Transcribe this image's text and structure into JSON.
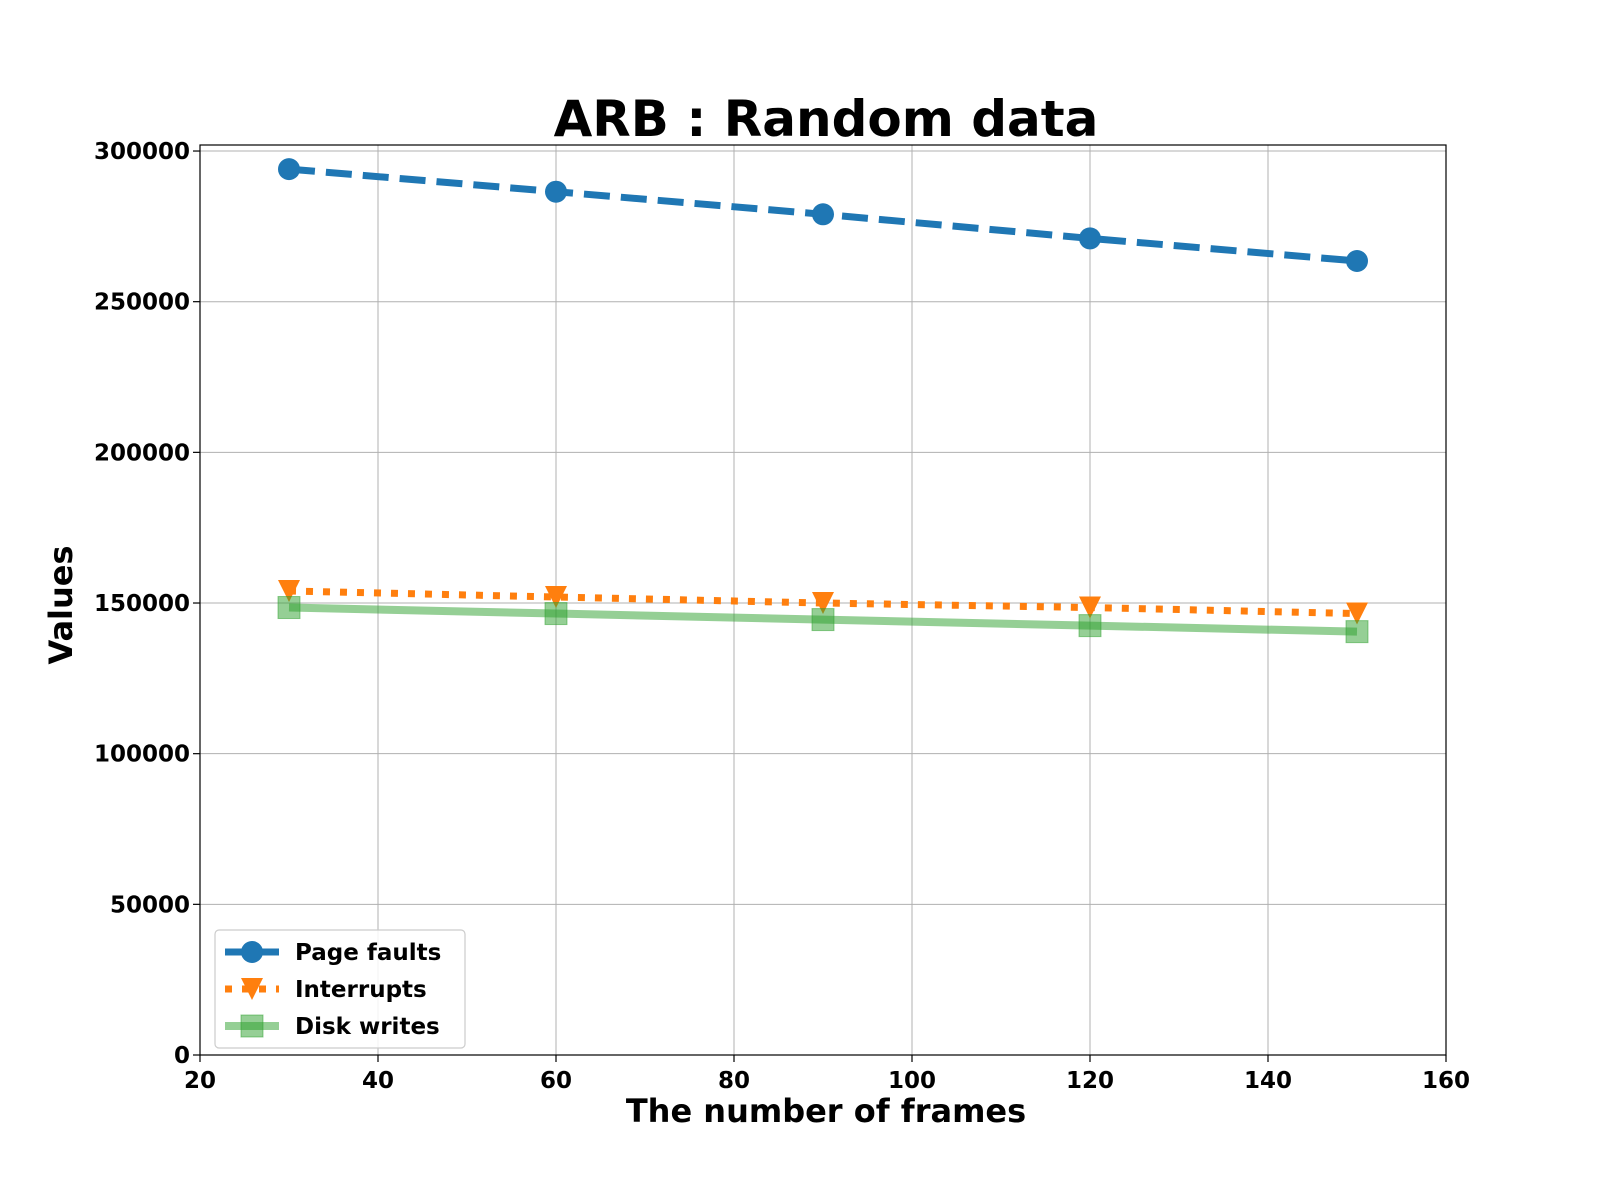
{
  "chart_data": {
    "type": "line",
    "title": "ARB : Random data",
    "xlabel": "The number of frames",
    "ylabel": "Values",
    "x": [
      30,
      60,
      90,
      120,
      150
    ],
    "xlim": [
      20,
      160
    ],
    "ylim": [
      0,
      302000
    ],
    "xticks": [
      20,
      40,
      60,
      80,
      100,
      120,
      140,
      160
    ],
    "yticks": [
      0,
      50000,
      100000,
      150000,
      200000,
      250000,
      300000
    ],
    "grid": true,
    "legend_position": "lower-left",
    "series": [
      {
        "name": "Page faults",
        "values": [
          294000,
          286500,
          279000,
          271000,
          263500
        ],
        "color": "#1f77b4",
        "line_style": "dashed",
        "marker": "circle"
      },
      {
        "name": "Interrupts",
        "values": [
          154000,
          152000,
          150000,
          148500,
          146500
        ],
        "color": "#ff7f0e",
        "line_style": "dotted",
        "marker": "triangle-down"
      },
      {
        "name": "Disk writes",
        "values": [
          148500,
          146500,
          144500,
          142500,
          140500
        ],
        "color": "#2ca02c",
        "line_style": "solid",
        "marker": "square",
        "opacity": 0.5
      }
    ]
  }
}
